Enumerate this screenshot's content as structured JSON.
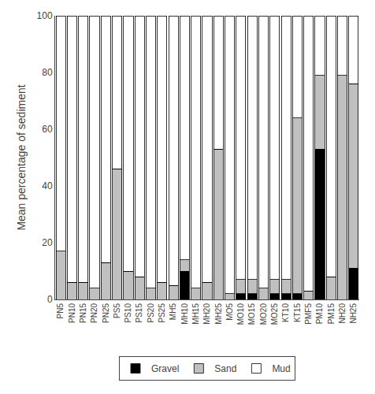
{
  "chart_data": {
    "type": "bar",
    "stacked": true,
    "categories": [
      "PN5",
      "PN10",
      "PN15",
      "PN20",
      "PN25",
      "PS5",
      "PS10",
      "PS15",
      "PS20",
      "PS25",
      "MH5",
      "MH10",
      "MH15",
      "MH20",
      "MH25",
      "MO5",
      "MO10",
      "MO15",
      "MO20",
      "MO25",
      "KT10",
      "KT15",
      "PMF5",
      "PM10",
      "PM15",
      "NH20",
      "NH25"
    ],
    "series": [
      {
        "name": "Gravel",
        "color": "#000000",
        "values": [
          0,
          0,
          0,
          0,
          0,
          0,
          0,
          0,
          0,
          0,
          0,
          10,
          0,
          0,
          0,
          0,
          2,
          2,
          0,
          2,
          2,
          2,
          0,
          53,
          0,
          0,
          11
        ]
      },
      {
        "name": "Sand",
        "color": "#c0c0c0",
        "values": [
          17,
          6,
          6,
          4,
          13,
          46,
          10,
          8,
          4,
          6,
          5,
          4,
          4,
          6,
          53,
          2,
          5,
          5,
          4,
          5,
          5,
          62,
          3,
          26,
          8,
          79,
          65
        ]
      },
      {
        "name": "Mud",
        "color": "#ffffff",
        "values": [
          83,
          94,
          94,
          96,
          87,
          54,
          90,
          92,
          96,
          94,
          95,
          86,
          96,
          94,
          47,
          98,
          93,
          93,
          96,
          93,
          93,
          36,
          97,
          21,
          92,
          21,
          24
        ]
      }
    ],
    "ylabel": "Mean percentage of sediment",
    "ylim": [
      0,
      100
    ],
    "yticks": [
      0,
      20,
      40,
      60,
      80,
      100
    ],
    "grid": false,
    "legend": "bottom"
  }
}
